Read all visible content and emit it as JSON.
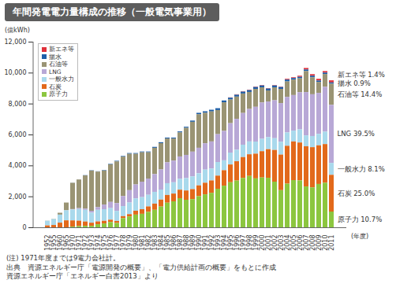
{
  "chart_data": {
    "type": "bar",
    "title": "年間発電電力量構成の推移（一般電気事業用）",
    "y_label": "(億kWh)",
    "x_label": "(年度)",
    "stacked": true,
    "grid": false,
    "legend": "top-left",
    "categories": [
      "1952",
      "1955",
      "1960",
      "1965",
      "1970",
      "1971",
      "1972",
      "1973",
      "1974",
      "1975",
      "1976",
      "1977",
      "1978",
      "1979",
      "1980",
      "1981",
      "1982",
      "1983",
      "1984",
      "1985",
      "1986",
      "1987",
      "1988",
      "1989",
      "1990",
      "1991",
      "1992",
      "1993",
      "1994",
      "1995",
      "1996",
      "1997",
      "1998",
      "1999",
      "2000",
      "2001",
      "2002",
      "2003",
      "2004",
      "2005",
      "2006",
      "2007",
      "2008",
      "2009",
      "2010",
      "2011"
    ],
    "series": [
      {
        "name": "新エネ等",
        "color": "#e0303a",
        "values": [
          0,
          0,
          0,
          0,
          0,
          0,
          0,
          0,
          0,
          0,
          0,
          0,
          0,
          0,
          0,
          0,
          0,
          0,
          0,
          0,
          0,
          0,
          0,
          0,
          0,
          0,
          0,
          0,
          0,
          20,
          30,
          30,
          30,
          30,
          30,
          30,
          30,
          30,
          50,
          50,
          70,
          100,
          100,
          110,
          100,
          133
        ]
      },
      {
        "name": "揚水",
        "color": "#1f5fa8",
        "values": [
          0,
          0,
          0,
          0,
          10,
          10,
          15,
          20,
          20,
          30,
          30,
          40,
          40,
          50,
          50,
          50,
          50,
          60,
          60,
          60,
          60,
          70,
          70,
          80,
          90,
          100,
          110,
          120,
          120,
          120,
          120,
          120,
          120,
          120,
          120,
          120,
          120,
          120,
          120,
          100,
          100,
          100,
          100,
          90,
          90,
          86
        ]
      },
      {
        "name": "石油等",
        "color": "#9a9474",
        "values": [
          10,
          20,
          120,
          500,
          1700,
          1850,
          2150,
          2600,
          2300,
          2200,
          2430,
          2700,
          2550,
          2350,
          1980,
          1900,
          1700,
          1700,
          1700,
          1540,
          1430,
          1550,
          1750,
          1930,
          2170,
          1970,
          1940,
          1560,
          1850,
          1530,
          1440,
          1260,
          1100,
          1160,
          980,
          720,
          840,
          920,
          1000,
          1000,
          900,
          1360,
          1100,
          710,
          830,
          1368
        ]
      },
      {
        "name": "LNG",
        "color": "#b8a8d6",
        "values": [
          0,
          0,
          0,
          0,
          30,
          60,
          80,
          120,
          170,
          300,
          400,
          500,
          650,
          800,
          900,
          1000,
          1050,
          1150,
          1300,
          1350,
          1400,
          1450,
          1500,
          1600,
          1650,
          1700,
          1750,
          1800,
          1900,
          1900,
          2000,
          2050,
          2100,
          2250,
          2350,
          2300,
          2450,
          2500,
          2300,
          2300,
          2400,
          2800,
          2700,
          2650,
          2900,
          3753
        ]
      },
      {
        "name": "一般水力",
        "color": "#a9d9ec",
        "values": [
          300,
          380,
          520,
          650,
          700,
          750,
          750,
          650,
          750,
          750,
          750,
          650,
          650,
          750,
          800,
          780,
          750,
          760,
          650,
          760,
          730,
          700,
          800,
          820,
          780,
          850,
          770,
          880,
          640,
          770,
          740,
          800,
          830,
          780,
          800,
          780,
          760,
          830,
          860,
          700,
          850,
          700,
          720,
          740,
          800,
          770
        ]
      },
      {
        "name": "石炭",
        "color": "#e2691b",
        "values": [
          120,
          150,
          300,
          450,
          400,
          350,
          280,
          200,
          180,
          170,
          150,
          130,
          130,
          150,
          250,
          300,
          350,
          400,
          450,
          500,
          500,
          550,
          600,
          650,
          700,
          750,
          800,
          850,
          1000,
          1150,
          1250,
          1350,
          1400,
          1600,
          1700,
          1850,
          2050,
          2300,
          2450,
          2500,
          2450,
          2600,
          2600,
          2500,
          2500,
          2375
        ]
      },
      {
        "name": "原子力",
        "color": "#8cc63f",
        "values": [
          0,
          0,
          0,
          0,
          46,
          80,
          95,
          97,
          200,
          250,
          340,
          280,
          590,
          700,
          820,
          870,
          1000,
          1130,
          1340,
          1590,
          1680,
          1880,
          1780,
          1820,
          2010,
          2130,
          2230,
          2490,
          2690,
          2910,
          3020,
          3190,
          3320,
          3160,
          3220,
          3200,
          2950,
          2400,
          2820,
          3050,
          3030,
          2640,
          2580,
          2800,
          2880,
          1017
        ]
      }
    ],
    "ylim": [
      0,
      12000
    ],
    "yticks": [
      0,
      {
        "value": 2000,
        "label": "2,000"
      },
      {
        "value": 4000,
        "label": "4,000"
      },
      {
        "value": 6000,
        "label": "6,000"
      },
      {
        "value": 8000,
        "label": "8,000"
      },
      {
        "value": 10000,
        "label": "10,000"
      },
      {
        "value": 12000,
        "label": "12,000"
      }
    ],
    "annotations": [
      {
        "series": "新エネ等",
        "text": "新エネ等 1.4%"
      },
      {
        "series": "揚水",
        "text": "揚水 0.9%"
      },
      {
        "series": "石油等",
        "text": "石油等 14.4%"
      },
      {
        "series": "LNG",
        "text": "LNG 39.5%"
      },
      {
        "series": "一般水力",
        "text": "一般水力 8.1%"
      },
      {
        "series": "石炭",
        "text": "石炭 25.0%"
      },
      {
        "series": "原子力",
        "text": "原子力 10.7%"
      }
    ],
    "notes": [
      "(注) 1971年度までは9電力会社計。",
      "出典　資源エネルギー庁「電源開発の概要」、「電力供給計画の概要」をもとに作成",
      "資源エネルギー庁「エネルギー白書2013」より"
    ]
  }
}
